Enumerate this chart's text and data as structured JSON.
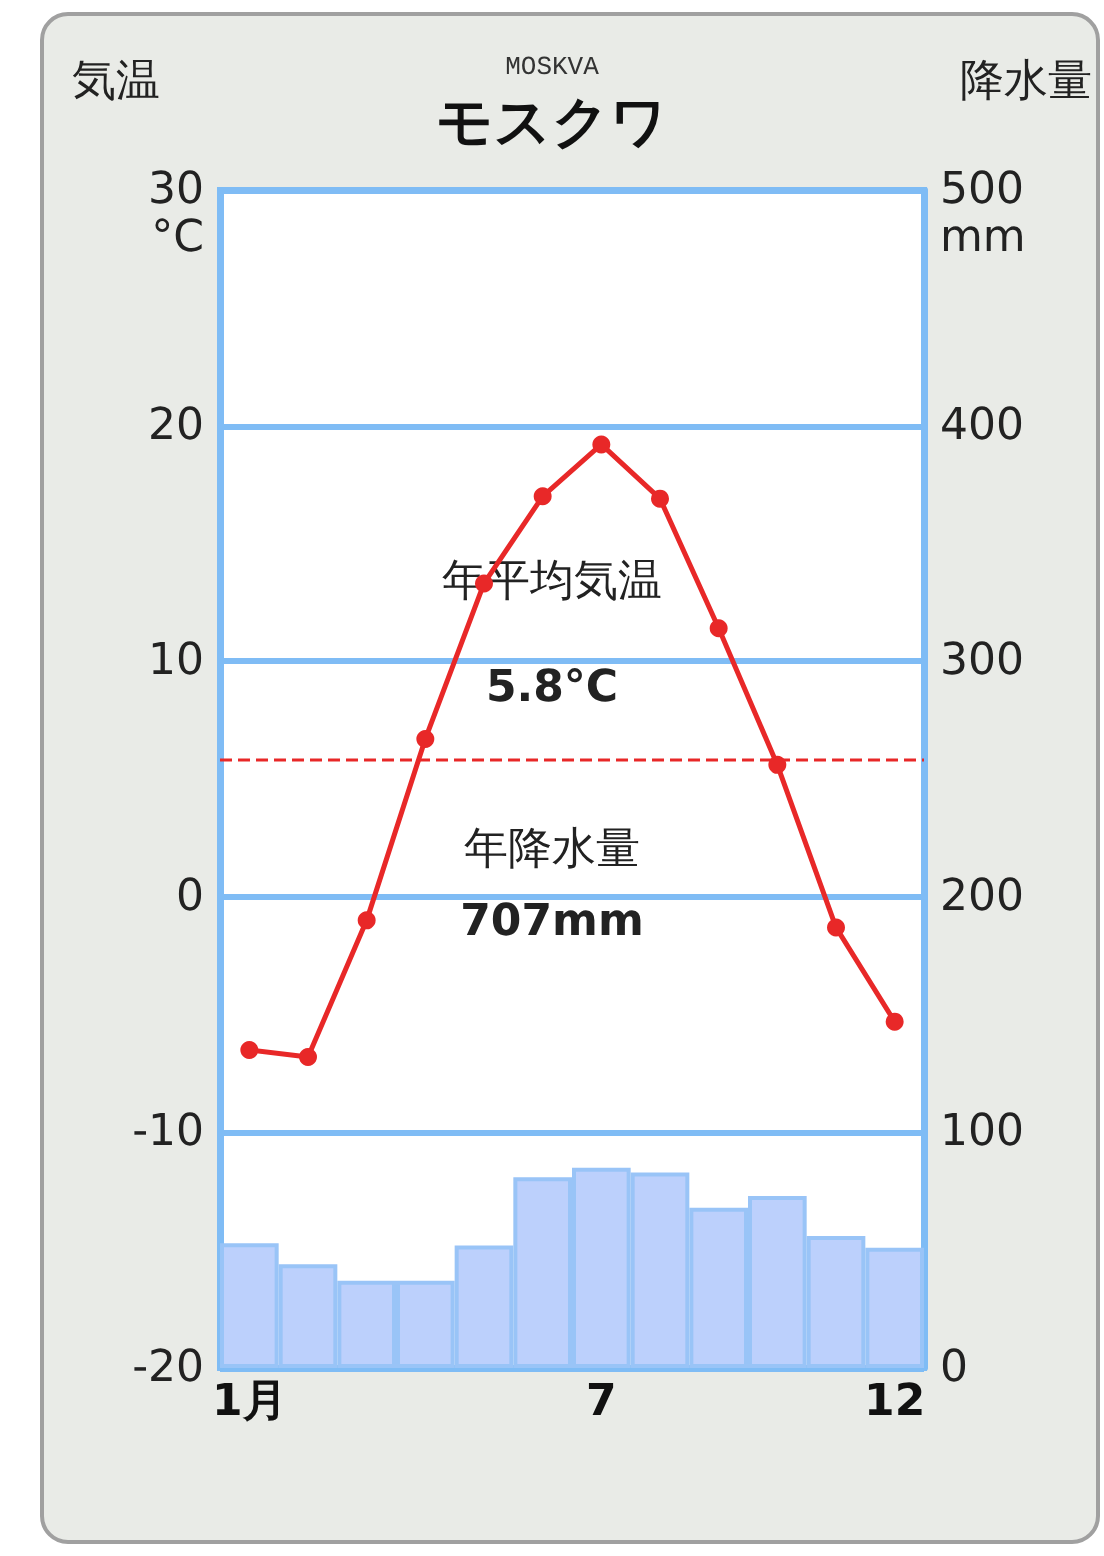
{
  "chart_data": {
    "type": "bar",
    "title": "モスクワ",
    "subtitle": "MOSKVA",
    "ylabel": "気温",
    "y2label": "降水量",
    "categories": [
      "1月",
      null,
      null,
      null,
      null,
      null,
      "7",
      null,
      null,
      null,
      null,
      "12"
    ],
    "series": [
      {
        "axis": "y2",
        "color": "#bcd0fc",
        "values": [
          53,
          44,
          37,
          37,
          52,
          81,
          85,
          83,
          68,
          73,
          56,
          51
        ]
      },
      {
        "type": "line",
        "axis": "y",
        "color": "#e82828",
        "marker": "circle",
        "values": [
          -6.5,
          -6.8,
          -1.0,
          6.7,
          13.3,
          17.0,
          19.2,
          16.9,
          11.4,
          5.6,
          -1.3,
          -5.3
        ]
      }
    ],
    "ylim": [
      -20,
      30
    ],
    "yticks": [
      -20,
      -10,
      0,
      10,
      20,
      {
        "value": 30,
        "label": "30\n°C"
      }
    ],
    "y2lim": [
      0,
      500
    ],
    "y2ticks": [
      0,
      100,
      200,
      300,
      400,
      {
        "value": 500,
        "label": "500\nmm"
      }
    ],
    "ref_lines": [
      {
        "axis": "y",
        "value": 5.8,
        "color": "#e82828",
        "line_style": "dashed"
      }
    ],
    "annotations": [
      "年平均気温",
      "5.8°C",
      "年降水量",
      "707mm"
    ],
    "grid": "y"
  }
}
